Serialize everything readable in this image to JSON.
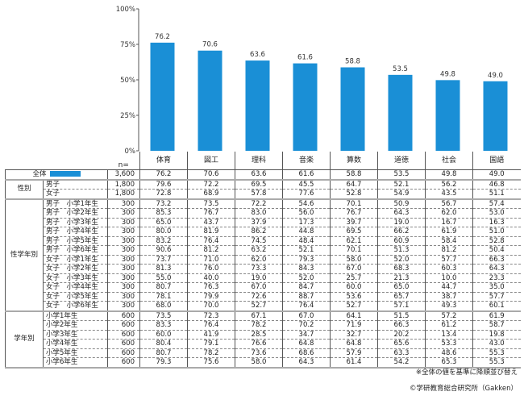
{
  "chart_data": {
    "type": "bar",
    "categories": [
      "体育",
      "図工",
      "理科",
      "音楽",
      "算数",
      "道徳",
      "社会",
      "国語"
    ],
    "values": [
      76.2,
      70.6,
      63.6,
      61.6,
      58.8,
      53.5,
      49.8,
      49.0
    ],
    "ylim": [
      0,
      100
    ],
    "yticks": [
      "0%",
      "25%",
      "50%",
      "75%",
      "100%"
    ],
    "color": "#1a8fd6"
  },
  "table": {
    "n_label": "n=",
    "total": {
      "label": "全体",
      "n": "3,600",
      "values": [
        "76.2",
        "70.6",
        "63.6",
        "61.6",
        "58.8",
        "53.5",
        "49.8",
        "49.0"
      ]
    },
    "groups": [
      {
        "label": "性別",
        "rows": [
          {
            "label": "男子",
            "n": "1,800",
            "values": [
              "79.6",
              "72.2",
              "69.5",
              "45.5",
              "64.7",
              "52.1",
              "56.2",
              "46.8"
            ]
          },
          {
            "label": "女子",
            "n": "1,800",
            "values": [
              "72.8",
              "68.9",
              "57.8",
              "77.6",
              "52.8",
              "54.9",
              "43.5",
              "51.1"
            ]
          }
        ]
      },
      {
        "label": "性学年別",
        "rows": [
          {
            "label": "男子　小学1年生",
            "n": "300",
            "values": [
              "73.2",
              "73.5",
              "72.2",
              "54.6",
              "70.1",
              "50.9",
              "56.7",
              "57.4"
            ]
          },
          {
            "label": "男子　小学2年生",
            "n": "300",
            "values": [
              "85.3",
              "76.7",
              "83.0",
              "56.0",
              "76.7",
              "64.3",
              "62.0",
              "53.0"
            ]
          },
          {
            "label": "男子　小学3年生",
            "n": "300",
            "values": [
              "65.0",
              "43.7",
              "37.9",
              "17.3",
              "39.7",
              "19.0",
              "16.7",
              "16.3"
            ]
          },
          {
            "label": "男子　小学4年生",
            "n": "300",
            "values": [
              "80.0",
              "81.9",
              "86.2",
              "44.8",
              "69.5",
              "66.2",
              "61.9",
              "51.0"
            ]
          },
          {
            "label": "男子　小学5年生",
            "n": "300",
            "values": [
              "83.2",
              "76.4",
              "74.5",
              "48.4",
              "62.1",
              "60.9",
              "58.4",
              "52.8"
            ]
          },
          {
            "label": "男子　小学6年生",
            "n": "300",
            "values": [
              "90.6",
              "81.2",
              "63.2",
              "52.1",
              "70.1",
              "51.3",
              "81.2",
              "50.4"
            ]
          },
          {
            "label": "女子　小学1年生",
            "n": "300",
            "values": [
              "73.7",
              "71.0",
              "62.0",
              "79.3",
              "58.0",
              "52.0",
              "57.7",
              "66.3"
            ]
          },
          {
            "label": "女子　小学2年生",
            "n": "300",
            "values": [
              "81.3",
              "76.0",
              "73.3",
              "84.3",
              "67.0",
              "68.3",
              "60.3",
              "64.3"
            ]
          },
          {
            "label": "女子　小学3年生",
            "n": "300",
            "values": [
              "55.0",
              "40.0",
              "19.0",
              "52.0",
              "25.7",
              "21.3",
              "10.0",
              "23.3"
            ]
          },
          {
            "label": "女子　小学4年生",
            "n": "300",
            "values": [
              "80.7",
              "76.3",
              "67.0",
              "84.7",
              "60.0",
              "65.0",
              "44.7",
              "35.0"
            ]
          },
          {
            "label": "女子　小学5年生",
            "n": "300",
            "values": [
              "78.1",
              "79.9",
              "72.6",
              "88.7",
              "53.6",
              "65.7",
              "38.7",
              "57.7"
            ]
          },
          {
            "label": "女子　小学6年生",
            "n": "300",
            "values": [
              "68.0",
              "70.0",
              "52.7",
              "76.4",
              "52.7",
              "57.1",
              "49.3",
              "60.1"
            ]
          }
        ]
      },
      {
        "label": "学年別",
        "rows": [
          {
            "label": "小学1年生",
            "n": "600",
            "values": [
              "73.5",
              "72.3",
              "67.1",
              "67.0",
              "64.1",
              "51.5",
              "57.2",
              "61.9"
            ]
          },
          {
            "label": "小学2年生",
            "n": "600",
            "values": [
              "83.3",
              "76.4",
              "78.2",
              "70.2",
              "71.9",
              "66.3",
              "61.2",
              "58.7"
            ]
          },
          {
            "label": "小学3年生",
            "n": "600",
            "values": [
              "60.0",
              "41.9",
              "28.5",
              "34.7",
              "32.7",
              "20.2",
              "13.4",
              "19.8"
            ]
          },
          {
            "label": "小学4年生",
            "n": "600",
            "values": [
              "80.4",
              "79.1",
              "76.6",
              "64.8",
              "64.8",
              "65.6",
              "53.3",
              "43.0"
            ]
          },
          {
            "label": "小学5年生",
            "n": "600",
            "values": [
              "80.7",
              "78.2",
              "73.6",
              "68.6",
              "57.9",
              "63.3",
              "48.6",
              "55.3"
            ]
          },
          {
            "label": "小学6年生",
            "n": "600",
            "values": [
              "79.3",
              "75.6",
              "58.0",
              "64.3",
              "61.4",
              "54.2",
              "65.3",
              "55.3"
            ]
          }
        ]
      }
    ]
  },
  "notes": {
    "sort": "※全体の値を基準に降順並び替え",
    "credit": "©学研教育総合研究所（Gakken）"
  }
}
